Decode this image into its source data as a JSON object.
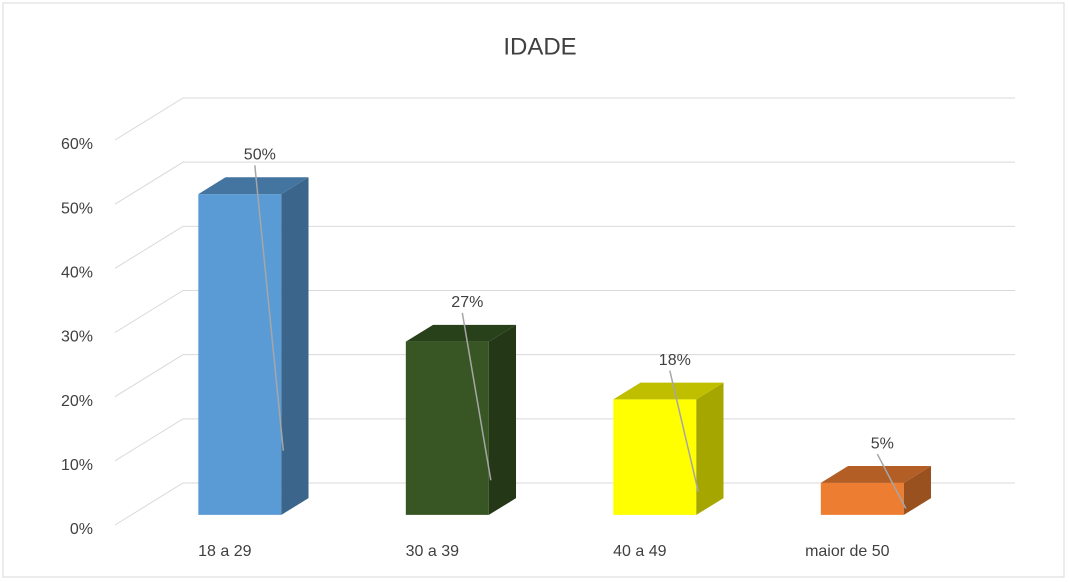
{
  "chart_data": {
    "type": "bar3d",
    "title": "IDADE",
    "categories": [
      "18 a 29",
      "30 a 39",
      "40 a 49",
      "maior de 50"
    ],
    "values": [
      50,
      27,
      18,
      5
    ],
    "value_labels": [
      "50%",
      "27%",
      "18%",
      "5%"
    ],
    "colors": [
      "#5b9bd5",
      "#375623",
      "#ffff00",
      "#ed7d31"
    ],
    "ylim": [
      0,
      60
    ],
    "yticks": [
      {
        "value": 0,
        "label": "0%"
      },
      {
        "value": 10,
        "label": "10%"
      },
      {
        "value": 20,
        "label": "20%"
      },
      {
        "value": 30,
        "label": "30%"
      },
      {
        "value": 40,
        "label": "40%"
      },
      {
        "value": 50,
        "label": "50%"
      },
      {
        "value": 60,
        "label": "60%"
      }
    ],
    "grid": true
  }
}
